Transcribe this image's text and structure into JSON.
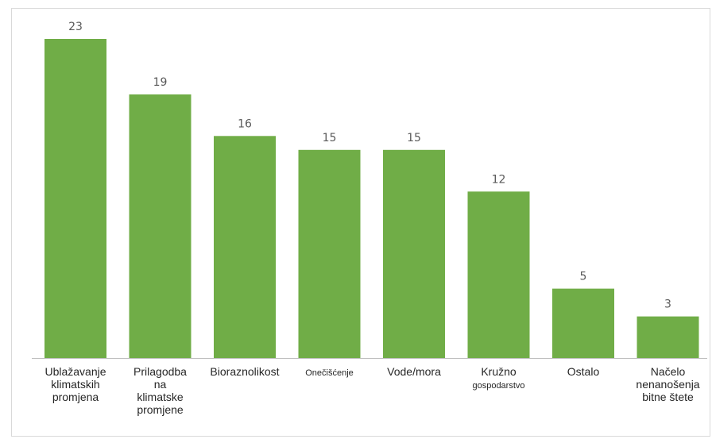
{
  "chart_data": {
    "type": "bar",
    "title": "",
    "xlabel": "",
    "ylabel": "",
    "ylim": [
      0,
      23
    ],
    "grid": false,
    "legend": "none",
    "bar_color": "#70ad47",
    "axis_color": "#bfbfbf",
    "categories": [
      [
        "Ublažavanje",
        "klimatskih",
        "promjena"
      ],
      [
        "Prilagodba",
        "na",
        "klimatske",
        "promjene"
      ],
      [
        "Bioraznolikost"
      ],
      [
        "Onečišćenje"
      ],
      [
        "Vode/mora"
      ],
      [
        "Kružno",
        "gospodarstvo"
      ],
      [
        "Ostalo"
      ],
      [
        "Načelo",
        "nenanošenja",
        "bitne štete"
      ]
    ],
    "values": [
      23,
      19,
      16,
      15,
      15,
      12,
      5,
      3
    ]
  }
}
